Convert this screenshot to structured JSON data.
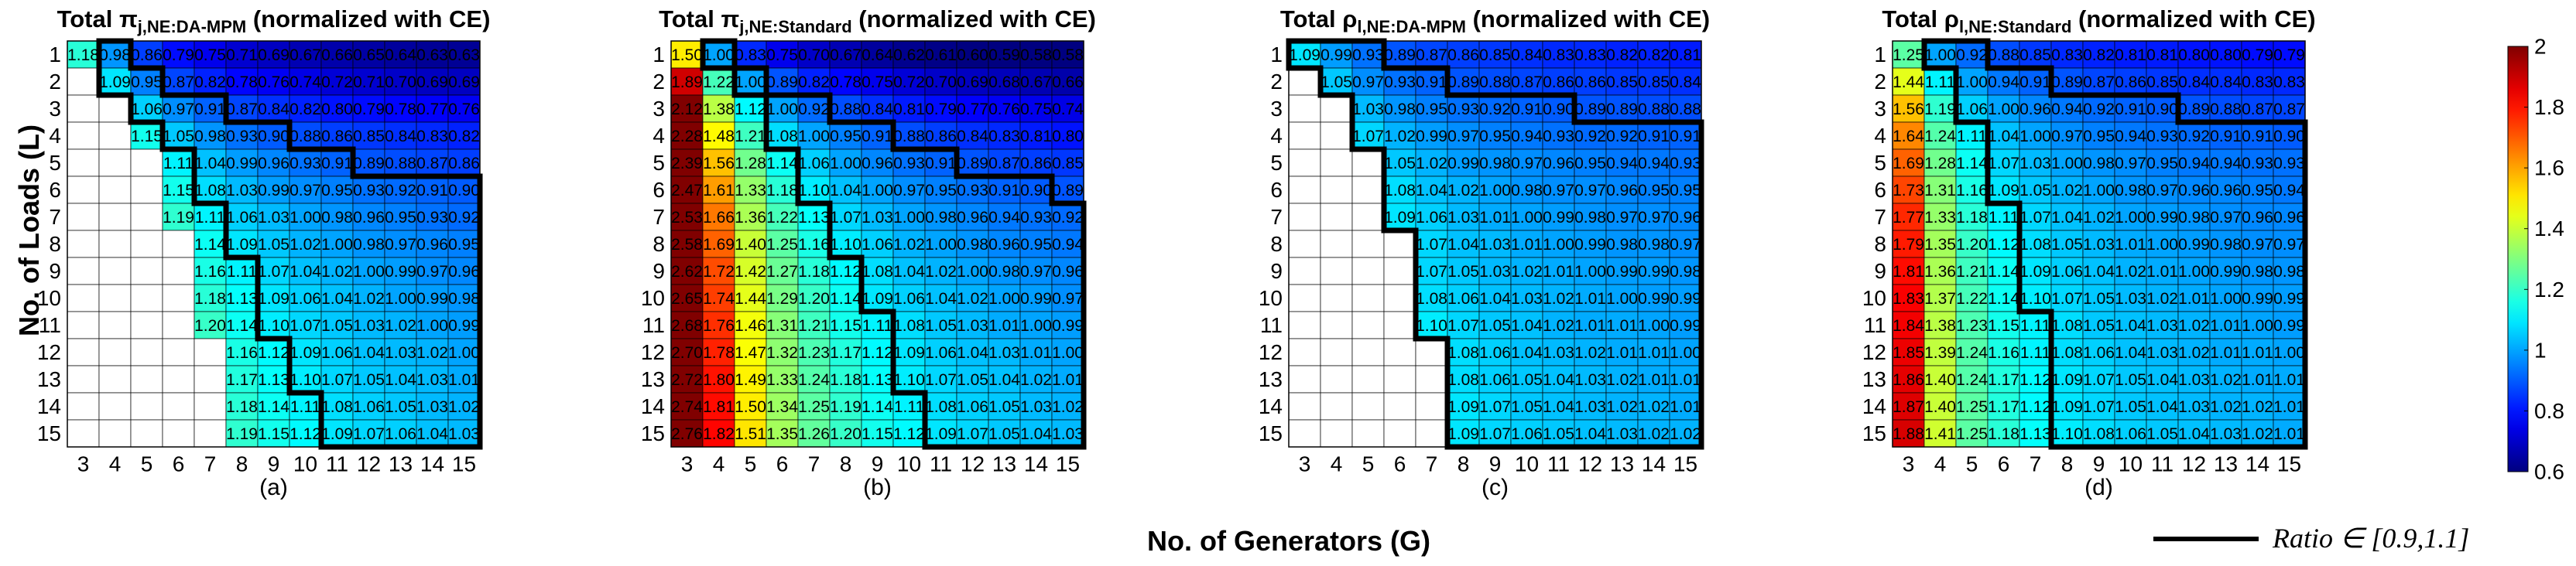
{
  "axes": {
    "xlabel": "No. of Generators (G)",
    "ylabel": "No. of Loads (L)"
  },
  "legend": {
    "line_label": "Ratio ∈ [0.9,1.1]"
  },
  "colorbar": {
    "min": 0.6,
    "max": 2,
    "ticks": [
      "0.6",
      "0.8",
      "1",
      "1.2",
      "1.4",
      "1.6",
      "1.8",
      "2"
    ]
  },
  "chart_data": [
    {
      "type": "heatmap",
      "label": "(a)",
      "title_prefix": "Total π",
      "title_sub": "j,NE:DA-MPM",
      "title_suffix": " (normalized with CE)",
      "x": [
        "3",
        "4",
        "5",
        "6",
        "7",
        "8",
        "9",
        "10",
        "11",
        "12",
        "13",
        "14",
        "15"
      ],
      "y": [
        "1",
        "2",
        "3",
        "4",
        "5",
        "6",
        "7",
        "8",
        "9",
        "10",
        "11",
        "12",
        "13",
        "14",
        "15"
      ],
      "rows": [
        [
          "1.18",
          "0.98",
          "0.86",
          "0.79",
          "0.75",
          "0.71",
          "0.69",
          "0.67",
          "0.66",
          "0.65",
          "0.64",
          "0.63",
          "0.63"
        ],
        [
          "",
          "1.09",
          "0.95",
          "0.87",
          "0.82",
          "0.78",
          "0.76",
          "0.74",
          "0.72",
          "0.71",
          "0.70",
          "0.69",
          "0.69"
        ],
        [
          "",
          "",
          "1.06",
          "0.97",
          "0.91",
          "0.87",
          "0.84",
          "0.82",
          "0.80",
          "0.79",
          "0.78",
          "0.77",
          "0.76"
        ],
        [
          "",
          "",
          "1.15",
          "1.05",
          "0.98",
          "0.93",
          "0.90",
          "0.88",
          "0.86",
          "0.85",
          "0.84",
          "0.83",
          "0.82"
        ],
        [
          "",
          "",
          "",
          "1.11",
          "1.04",
          "0.99",
          "0.96",
          "0.93",
          "0.91",
          "0.89",
          "0.88",
          "0.87",
          "0.86"
        ],
        [
          "",
          "",
          "",
          "1.15",
          "1.08",
          "1.03",
          "0.99",
          "0.97",
          "0.95",
          "0.93",
          "0.92",
          "0.91",
          "0.90"
        ],
        [
          "",
          "",
          "",
          "1.19",
          "1.11",
          "1.06",
          "1.03",
          "1.00",
          "0.98",
          "0.96",
          "0.95",
          "0.93",
          "0.92"
        ],
        [
          "",
          "",
          "",
          "",
          "1.14",
          "1.09",
          "1.05",
          "1.02",
          "1.00",
          "0.98",
          "0.97",
          "0.96",
          "0.95"
        ],
        [
          "",
          "",
          "",
          "",
          "1.16",
          "1.11",
          "1.07",
          "1.04",
          "1.02",
          "1.00",
          "0.99",
          "0.97",
          "0.96"
        ],
        [
          "",
          "",
          "",
          "",
          "1.18",
          "1.13",
          "1.09",
          "1.06",
          "1.04",
          "1.02",
          "1.00",
          "0.99",
          "0.98"
        ],
        [
          "",
          "",
          "",
          "",
          "1.20",
          "1.14",
          "1.10",
          "1.07",
          "1.05",
          "1.03",
          "1.02",
          "1.00",
          "0.99"
        ],
        [
          "",
          "",
          "",
          "",
          "",
          "1.16",
          "1.12",
          "1.09",
          "1.06",
          "1.04",
          "1.03",
          "1.02",
          "1.00"
        ],
        [
          "",
          "",
          "",
          "",
          "",
          "1.17",
          "1.13",
          "1.10",
          "1.07",
          "1.05",
          "1.04",
          "1.03",
          "1.01"
        ],
        [
          "",
          "",
          "",
          "",
          "",
          "1.18",
          "1.14",
          "1.11",
          "1.08",
          "1.06",
          "1.05",
          "1.03",
          "1.02"
        ],
        [
          "",
          "",
          "",
          "",
          "",
          "1.19",
          "1.15",
          "1.12",
          "1.09",
          "1.07",
          "1.06",
          "1.04",
          "1.03"
        ]
      ]
    },
    {
      "type": "heatmap",
      "label": "(b)",
      "title_prefix": "Total π",
      "title_sub": "j,NE:Standard",
      "title_suffix": " (normalized with CE)",
      "x": [
        "3",
        "4",
        "5",
        "6",
        "7",
        "8",
        "9",
        "10",
        "11",
        "12",
        "13",
        "14",
        "15"
      ],
      "y": [
        "1",
        "2",
        "3",
        "4",
        "5",
        "6",
        "7",
        "8",
        "9",
        "10",
        "11",
        "12",
        "13",
        "14",
        "15"
      ],
      "rows": [
        [
          "1.50",
          "1.00",
          "0.83",
          "0.75",
          "0.70",
          "0.67",
          "0.64",
          "0.62",
          "0.61",
          "0.60",
          "0.59",
          "0.58",
          "0.58"
        ],
        [
          "1.89",
          "1.22",
          "1.00",
          "0.89",
          "0.82",
          "0.78",
          "0.75",
          "0.72",
          "0.70",
          "0.69",
          "0.68",
          "0.67",
          "0.66"
        ],
        [
          "2.12",
          "1.38",
          "1.12",
          "1.00",
          "0.92",
          "0.88",
          "0.84",
          "0.81",
          "0.79",
          "0.77",
          "0.76",
          "0.75",
          "0.74"
        ],
        [
          "2.28",
          "1.48",
          "1.21",
          "1.08",
          "1.00",
          "0.95",
          "0.91",
          "0.88",
          "0.86",
          "0.84",
          "0.83",
          "0.81",
          "0.80"
        ],
        [
          "2.39",
          "1.56",
          "1.28",
          "1.14",
          "1.06",
          "1.00",
          "0.96",
          "0.93",
          "0.91",
          "0.89",
          "0.87",
          "0.86",
          "0.85"
        ],
        [
          "2.47",
          "1.61",
          "1.33",
          "1.18",
          "1.10",
          "1.04",
          "1.00",
          "0.97",
          "0.95",
          "0.93",
          "0.91",
          "0.90",
          "0.89"
        ],
        [
          "2.53",
          "1.66",
          "1.36",
          "1.22",
          "1.13",
          "1.07",
          "1.03",
          "1.00",
          "0.98",
          "0.96",
          "0.94",
          "0.93",
          "0.92"
        ],
        [
          "2.58",
          "1.69",
          "1.40",
          "1.25",
          "1.16",
          "1.10",
          "1.06",
          "1.02",
          "1.00",
          "0.98",
          "0.96",
          "0.95",
          "0.94"
        ],
        [
          "2.62",
          "1.72",
          "1.42",
          "1.27",
          "1.18",
          "1.12",
          "1.08",
          "1.04",
          "1.02",
          "1.00",
          "0.98",
          "0.97",
          "0.96"
        ],
        [
          "2.65",
          "1.74",
          "1.44",
          "1.29",
          "1.20",
          "1.14",
          "1.09",
          "1.06",
          "1.04",
          "1.02",
          "1.00",
          "0.99",
          "0.97"
        ],
        [
          "2.68",
          "1.76",
          "1.46",
          "1.31",
          "1.21",
          "1.15",
          "1.11",
          "1.08",
          "1.05",
          "1.03",
          "1.01",
          "1.00",
          "0.99"
        ],
        [
          "2.70",
          "1.78",
          "1.47",
          "1.32",
          "1.23",
          "1.17",
          "1.12",
          "1.09",
          "1.06",
          "1.04",
          "1.03",
          "1.01",
          "1.00"
        ],
        [
          "2.72",
          "1.80",
          "1.49",
          "1.33",
          "1.24",
          "1.18",
          "1.13",
          "1.10",
          "1.07",
          "1.05",
          "1.04",
          "1.02",
          "1.01"
        ],
        [
          "2.74",
          "1.81",
          "1.50",
          "1.34",
          "1.25",
          "1.19",
          "1.14",
          "1.11",
          "1.08",
          "1.06",
          "1.05",
          "1.03",
          "1.02"
        ],
        [
          "2.76",
          "1.82",
          "1.51",
          "1.35",
          "1.26",
          "1.20",
          "1.15",
          "1.12",
          "1.09",
          "1.07",
          "1.05",
          "1.04",
          "1.03"
        ]
      ]
    },
    {
      "type": "heatmap",
      "label": "(c)",
      "title_prefix": "Total ρ",
      "title_sub": "l,NE:DA-MPM",
      "title_suffix": " (normalized with CE)",
      "x": [
        "3",
        "4",
        "5",
        "6",
        "7",
        "8",
        "9",
        "10",
        "11",
        "12",
        "13",
        "14",
        "15"
      ],
      "y": [
        "1",
        "2",
        "3",
        "4",
        "5",
        "6",
        "7",
        "8",
        "9",
        "10",
        "11",
        "12",
        "13",
        "14",
        "15"
      ],
      "rows": [
        [
          "1.09",
          "0.99",
          "0.93",
          "0.89",
          "0.87",
          "0.86",
          "0.85",
          "0.84",
          "0.83",
          "0.83",
          "0.82",
          "0.82",
          "0.81"
        ],
        [
          "",
          "1.05",
          "0.97",
          "0.93",
          "0.91",
          "0.89",
          "0.88",
          "0.87",
          "0.86",
          "0.86",
          "0.85",
          "0.85",
          "0.84"
        ],
        [
          "",
          "",
          "1.03",
          "0.98",
          "0.95",
          "0.93",
          "0.92",
          "0.91",
          "0.90",
          "0.89",
          "0.89",
          "0.88",
          "0.88"
        ],
        [
          "",
          "",
          "1.07",
          "1.02",
          "0.99",
          "0.97",
          "0.95",
          "0.94",
          "0.93",
          "0.92",
          "0.92",
          "0.91",
          "0.91"
        ],
        [
          "",
          "",
          "",
          "1.05",
          "1.02",
          "0.99",
          "0.98",
          "0.97",
          "0.96",
          "0.95",
          "0.94",
          "0.94",
          "0.93"
        ],
        [
          "",
          "",
          "",
          "1.08",
          "1.04",
          "1.02",
          "1.00",
          "0.98",
          "0.97",
          "0.97",
          "0.96",
          "0.95",
          "0.95"
        ],
        [
          "",
          "",
          "",
          "1.09",
          "1.06",
          "1.03",
          "1.01",
          "1.00",
          "0.99",
          "0.98",
          "0.97",
          "0.97",
          "0.96"
        ],
        [
          "",
          "",
          "",
          "",
          "1.07",
          "1.04",
          "1.03",
          "1.01",
          "1.00",
          "0.99",
          "0.98",
          "0.98",
          "0.97"
        ],
        [
          "",
          "",
          "",
          "",
          "1.07",
          "1.05",
          "1.03",
          "1.02",
          "1.01",
          "1.00",
          "0.99",
          "0.99",
          "0.98"
        ],
        [
          "",
          "",
          "",
          "",
          "1.08",
          "1.06",
          "1.04",
          "1.03",
          "1.02",
          "1.01",
          "1.00",
          "0.99",
          "0.99"
        ],
        [
          "",
          "",
          "",
          "",
          "1.10",
          "1.07",
          "1.05",
          "1.04",
          "1.02",
          "1.01",
          "1.01",
          "1.00",
          "0.99"
        ],
        [
          "",
          "",
          "",
          "",
          "",
          "1.08",
          "1.06",
          "1.04",
          "1.03",
          "1.02",
          "1.01",
          "1.01",
          "1.00"
        ],
        [
          "",
          "",
          "",
          "",
          "",
          "1.08",
          "1.06",
          "1.05",
          "1.04",
          "1.03",
          "1.02",
          "1.01",
          "1.01"
        ],
        [
          "",
          "",
          "",
          "",
          "",
          "1.09",
          "1.07",
          "1.05",
          "1.04",
          "1.03",
          "1.02",
          "1.02",
          "1.01"
        ],
        [
          "",
          "",
          "",
          "",
          "",
          "1.09",
          "1.07",
          "1.06",
          "1.05",
          "1.04",
          "1.03",
          "1.02",
          "1.02"
        ]
      ]
    },
    {
      "type": "heatmap",
      "label": "(d)",
      "title_prefix": "Total ρ",
      "title_sub": "l,NE:Standard",
      "title_suffix": " (normalized with CE)",
      "x": [
        "3",
        "4",
        "5",
        "6",
        "7",
        "8",
        "9",
        "10",
        "11",
        "12",
        "13",
        "14",
        "15"
      ],
      "y": [
        "1",
        "2",
        "3",
        "4",
        "5",
        "6",
        "7",
        "8",
        "9",
        "10",
        "11",
        "12",
        "13",
        "14",
        "15"
      ],
      "rows": [
        [
          "1.25",
          "1.00",
          "0.92",
          "0.88",
          "0.85",
          "0.83",
          "0.82",
          "0.81",
          "0.81",
          "0.80",
          "0.80",
          "0.79",
          "0.79"
        ],
        [
          "1.44",
          "1.11",
          "1.00",
          "0.94",
          "0.91",
          "0.89",
          "0.87",
          "0.86",
          "0.85",
          "0.84",
          "0.84",
          "0.83",
          "0.83"
        ],
        [
          "1.56",
          "1.19",
          "1.06",
          "1.00",
          "0.96",
          "0.94",
          "0.92",
          "0.91",
          "0.90",
          "0.89",
          "0.88",
          "0.87",
          "0.87"
        ],
        [
          "1.64",
          "1.24",
          "1.11",
          "1.04",
          "1.00",
          "0.97",
          "0.95",
          "0.94",
          "0.93",
          "0.92",
          "0.91",
          "0.91",
          "0.90"
        ],
        [
          "1.69",
          "1.28",
          "1.14",
          "1.07",
          "1.03",
          "1.00",
          "0.98",
          "0.97",
          "0.95",
          "0.94",
          "0.94",
          "0.93",
          "0.93"
        ],
        [
          "1.73",
          "1.31",
          "1.16",
          "1.09",
          "1.05",
          "1.02",
          "1.00",
          "0.98",
          "0.97",
          "0.96",
          "0.96",
          "0.95",
          "0.94"
        ],
        [
          "1.77",
          "1.33",
          "1.18",
          "1.11",
          "1.07",
          "1.04",
          "1.02",
          "1.00",
          "0.99",
          "0.98",
          "0.97",
          "0.96",
          "0.96"
        ],
        [
          "1.79",
          "1.35",
          "1.20",
          "1.12",
          "1.08",
          "1.05",
          "1.03",
          "1.01",
          "1.00",
          "0.99",
          "0.98",
          "0.97",
          "0.97"
        ],
        [
          "1.81",
          "1.36",
          "1.21",
          "1.14",
          "1.09",
          "1.06",
          "1.04",
          "1.02",
          "1.01",
          "1.00",
          "0.99",
          "0.98",
          "0.98"
        ],
        [
          "1.83",
          "1.37",
          "1.22",
          "1.14",
          "1.10",
          "1.07",
          "1.05",
          "1.03",
          "1.02",
          "1.01",
          "1.00",
          "0.99",
          "0.99"
        ],
        [
          "1.84",
          "1.38",
          "1.23",
          "1.15",
          "1.11",
          "1.08",
          "1.05",
          "1.04",
          "1.03",
          "1.02",
          "1.01",
          "1.00",
          "0.99"
        ],
        [
          "1.85",
          "1.39",
          "1.24",
          "1.16",
          "1.11",
          "1.08",
          "1.06",
          "1.04",
          "1.03",
          "1.02",
          "1.01",
          "1.01",
          "1.00"
        ],
        [
          "1.86",
          "1.40",
          "1.24",
          "1.17",
          "1.12",
          "1.09",
          "1.07",
          "1.05",
          "1.04",
          "1.03",
          "1.02",
          "1.01",
          "1.01"
        ],
        [
          "1.87",
          "1.40",
          "1.25",
          "1.17",
          "1.12",
          "1.09",
          "1.07",
          "1.05",
          "1.04",
          "1.03",
          "1.02",
          "1.02",
          "1.01"
        ],
        [
          "1.88",
          "1.41",
          "1.25",
          "1.18",
          "1.13",
          "1.10",
          "1.08",
          "1.06",
          "1.05",
          "1.04",
          "1.03",
          "1.02",
          "1.01"
        ]
      ]
    }
  ]
}
